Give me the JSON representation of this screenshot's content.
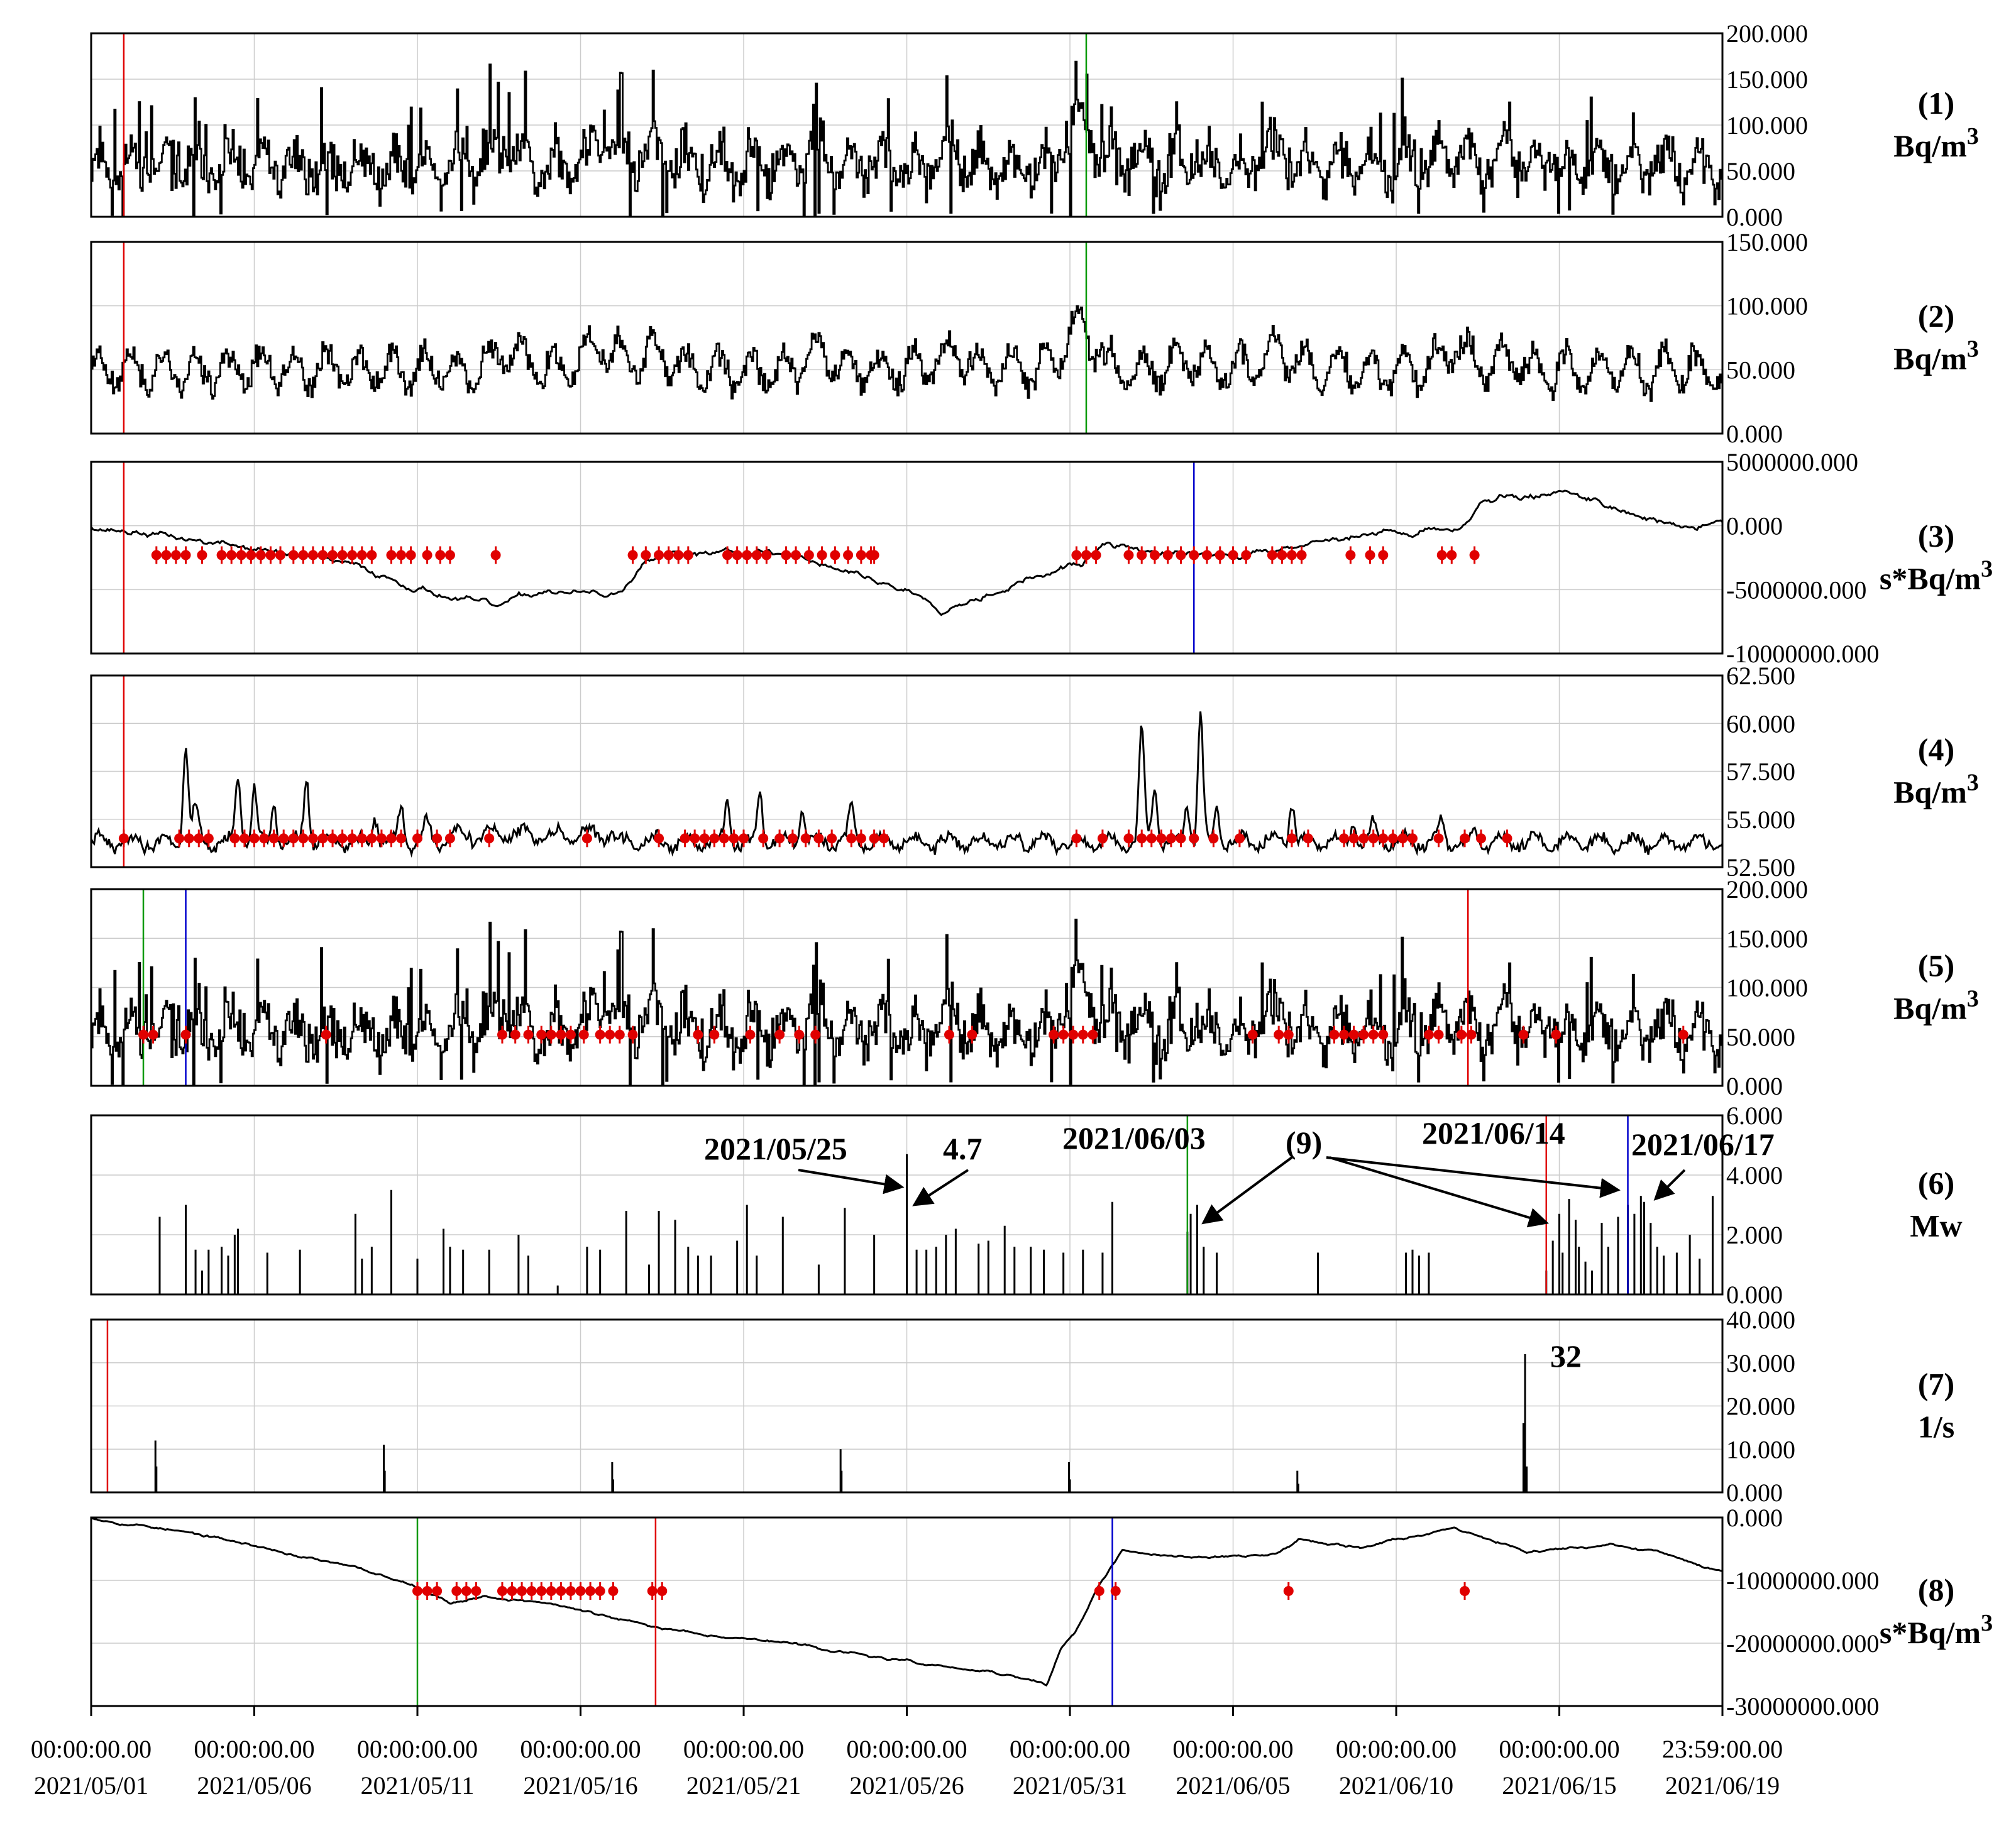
{
  "chart_data": {
    "type": "line",
    "x_axis": {
      "range": [
        "2021/05/01 00:00:00.00",
        "2021/06/19 23:59:00.00"
      ],
      "ticks": [
        {
          "time": "00:00:00.00",
          "date": "2021/05/01",
          "day": 0
        },
        {
          "time": "00:00:00.00",
          "date": "2021/05/06",
          "day": 5
        },
        {
          "time": "00:00:00.00",
          "date": "2021/05/11",
          "day": 10
        },
        {
          "time": "00:00:00.00",
          "date": "2021/05/16",
          "day": 15
        },
        {
          "time": "00:00:00.00",
          "date": "2021/05/21",
          "day": 20
        },
        {
          "time": "00:00:00.00",
          "date": "2021/05/26",
          "day": 25
        },
        {
          "time": "00:00:00.00",
          "date": "2021/05/31",
          "day": 30
        },
        {
          "time": "00:00:00.00",
          "date": "2021/06/05",
          "day": 35
        },
        {
          "time": "00:00:00.00",
          "date": "2021/06/10",
          "day": 40
        },
        {
          "time": "00:00:00.00",
          "date": "2021/06/15",
          "day": 45
        },
        {
          "time": "23:59:00.00",
          "date": "2021/06/19",
          "day": 49.999
        }
      ],
      "grid": true
    },
    "panels": [
      {
        "id": "(1)",
        "unit": "Bq/m",
        "unit_sup": "3",
        "ylim": [
          0,
          200
        ],
        "yticks": [
          "200.000",
          "150.000",
          "100.000",
          "50.000",
          "0.000"
        ],
        "style": "step",
        "kind": "radon",
        "vlines": [
          {
            "day": 1.0,
            "color": "#e00000"
          },
          {
            "day": 30.5,
            "color": "#009900"
          }
        ],
        "markers": []
      },
      {
        "id": "(2)",
        "unit": "Bq/m",
        "unit_sup": "3",
        "ylim": [
          0,
          150
        ],
        "yticks": [
          "150.000",
          "100.000",
          "50.000",
          "0.000"
        ],
        "style": "step",
        "kind": "radon_smooth",
        "vlines": [
          {
            "day": 1.0,
            "color": "#e00000"
          },
          {
            "day": 30.5,
            "color": "#009900"
          }
        ],
        "markers": []
      },
      {
        "id": "(3)",
        "unit": "s*Bq/m",
        "unit_sup": "3",
        "ylim": [
          -10000000,
          5000000
        ],
        "yticks": [
          "5000000.000",
          "0.000",
          "-5000000.000",
          "-10000000.000"
        ],
        "style": "line",
        "kind": "cumulative3",
        "vlines": [
          {
            "day": 1.0,
            "color": "#e00000"
          },
          {
            "day": 33.8,
            "color": "#0000cc"
          }
        ],
        "marker_value": -2300000,
        "markers": [
          2.0,
          2.3,
          2.6,
          2.9,
          3.4,
          4.0,
          4.3,
          4.6,
          4.9,
          5.2,
          5.5,
          5.8,
          6.2,
          6.5,
          6.8,
          7.1,
          7.4,
          7.7,
          8.0,
          8.3,
          8.6,
          9.2,
          9.5,
          9.8,
          10.3,
          10.7,
          11.0,
          12.4,
          16.6,
          17.0,
          17.4,
          17.7,
          18.0,
          18.3,
          19.5,
          19.8,
          20.1,
          20.4,
          20.7,
          21.3,
          21.6,
          22.0,
          22.4,
          22.8,
          23.2,
          23.6,
          23.9,
          24.0,
          30.2,
          30.5,
          30.8,
          31.8,
          32.2,
          32.6,
          33.0,
          33.4,
          33.8,
          34.2,
          34.6,
          35.0,
          35.4,
          36.2,
          36.5,
          36.8,
          37.1,
          38.6,
          39.2,
          39.6,
          41.4,
          41.7,
          42.4
        ]
      },
      {
        "id": "(4)",
        "unit": "Bq/m",
        "unit_sup": "3",
        "ylim": [
          52.5,
          62.5
        ],
        "yticks": [
          "62.500",
          "60.000",
          "57.500",
          "55.000",
          "52.500"
        ],
        "style": "line",
        "kind": "baseline4",
        "vlines": [
          {
            "day": 1.0,
            "color": "#e00000"
          }
        ],
        "marker_value": 54.0,
        "markers": [
          1.0,
          2.7,
          3.0,
          3.3,
          3.6,
          4.4,
          4.7,
          5.0,
          5.3,
          5.6,
          5.9,
          6.2,
          6.5,
          6.8,
          7.1,
          7.4,
          7.7,
          8.0,
          8.3,
          8.6,
          8.9,
          9.2,
          9.5,
          10.0,
          10.6,
          11.0,
          12.2,
          15.2,
          17.4,
          18.2,
          18.5,
          18.8,
          19.1,
          19.4,
          19.7,
          20.0,
          20.6,
          21.1,
          21.5,
          21.9,
          22.3,
          22.7,
          23.3,
          23.6,
          24.0,
          24.3,
          30.2,
          31.0,
          31.8,
          32.2,
          32.5,
          32.8,
          33.1,
          33.4,
          33.8,
          34.4,
          35.2,
          36.8,
          37.3,
          38.4,
          38.7,
          39.0,
          39.3,
          39.6,
          39.9,
          40.2,
          40.5,
          41.3,
          42.1,
          42.6,
          43.4
        ]
      },
      {
        "id": "(5)",
        "unit": "Bq/m",
        "unit_sup": "3",
        "ylim": [
          0,
          200
        ],
        "yticks": [
          "200.000",
          "150.000",
          "100.000",
          "50.000",
          "0.000"
        ],
        "style": "step",
        "kind": "radon5",
        "vlines": [
          {
            "day": 1.6,
            "color": "#009900"
          },
          {
            "day": 2.9,
            "color": "#0000cc"
          },
          {
            "day": 42.2,
            "color": "#e00000"
          }
        ],
        "marker_value": 52,
        "markers": [
          1.6,
          1.9,
          2.9,
          7.2,
          12.6,
          13.0,
          13.4,
          13.8,
          14.1,
          14.4,
          14.7,
          15.1,
          15.6,
          15.9,
          16.2,
          16.6,
          18.6,
          19.1,
          20.2,
          21.1,
          21.7,
          22.2,
          26.3,
          27.0,
          29.5,
          29.8,
          30.1,
          30.4,
          30.7,
          35.6,
          36.4,
          36.7,
          38.1,
          38.4,
          38.7,
          39.0,
          39.3,
          39.6,
          41.0,
          41.3,
          42.0,
          42.3,
          43.9,
          44.9,
          48.8
        ]
      },
      {
        "id": "(6)",
        "unit": "Mw",
        "unit_sup": "",
        "ylim": [
          0,
          6
        ],
        "yticks": [
          "6.000",
          "4.000",
          "2.000",
          "0.000"
        ],
        "style": "spikes",
        "kind": "magnitude",
        "vlines": [
          {
            "day": 33.6,
            "color": "#009900"
          },
          {
            "day": 44.6,
            "color": "#e00000"
          },
          {
            "day": 47.1,
            "color": "#0000cc"
          }
        ],
        "spikes": [
          [
            2.1,
            2.6
          ],
          [
            2.9,
            3.0
          ],
          [
            3.2,
            1.5
          ],
          [
            3.4,
            0.8
          ],
          [
            3.6,
            1.5
          ],
          [
            4.0,
            1.6
          ],
          [
            4.2,
            1.3
          ],
          [
            4.4,
            2.0
          ],
          [
            4.5,
            2.2
          ],
          [
            5.4,
            1.4
          ],
          [
            6.4,
            1.5
          ],
          [
            8.1,
            2.7
          ],
          [
            8.3,
            1.2
          ],
          [
            8.6,
            1.6
          ],
          [
            9.2,
            3.5
          ],
          [
            10.0,
            1.2
          ],
          [
            10.8,
            2.2
          ],
          [
            11.0,
            1.6
          ],
          [
            11.4,
            1.5
          ],
          [
            12.2,
            1.5
          ],
          [
            13.1,
            2.0
          ],
          [
            13.4,
            1.3
          ],
          [
            14.3,
            0.3
          ],
          [
            15.2,
            1.6
          ],
          [
            15.6,
            1.5
          ],
          [
            16.4,
            2.8
          ],
          [
            17.1,
            1.0
          ],
          [
            17.4,
            2.8
          ],
          [
            17.9,
            2.5
          ],
          [
            18.3,
            1.6
          ],
          [
            18.6,
            1.3
          ],
          [
            19.0,
            1.3
          ],
          [
            19.8,
            1.8
          ],
          [
            20.1,
            3.0
          ],
          [
            20.4,
            1.3
          ],
          [
            21.2,
            2.6
          ],
          [
            22.3,
            1.0
          ],
          [
            23.1,
            2.9
          ],
          [
            24.0,
            2.0
          ],
          [
            25.0,
            4.7
          ],
          [
            25.3,
            1.5
          ],
          [
            25.6,
            1.5
          ],
          [
            25.9,
            1.6
          ],
          [
            26.2,
            2.0
          ],
          [
            26.5,
            2.2
          ],
          [
            27.2,
            1.7
          ],
          [
            27.5,
            1.8
          ],
          [
            28.0,
            2.3
          ],
          [
            28.3,
            1.6
          ],
          [
            28.8,
            1.6
          ],
          [
            29.2,
            1.5
          ],
          [
            29.8,
            1.4
          ],
          [
            30.4,
            1.5
          ],
          [
            31.0,
            1.4
          ],
          [
            31.3,
            3.1
          ],
          [
            33.6,
            2.1
          ],
          [
            33.7,
            2.7
          ],
          [
            33.9,
            3.0
          ],
          [
            34.1,
            1.6
          ],
          [
            34.5,
            1.4
          ],
          [
            37.6,
            1.4
          ],
          [
            40.3,
            1.4
          ],
          [
            40.5,
            1.5
          ],
          [
            40.7,
            1.3
          ],
          [
            41.0,
            1.4
          ],
          [
            44.6,
            0.8
          ],
          [
            44.8,
            1.8
          ],
          [
            45.0,
            2.7
          ],
          [
            45.1,
            1.4
          ],
          [
            45.3,
            3.2
          ],
          [
            45.5,
            2.5
          ],
          [
            45.6,
            1.6
          ],
          [
            45.8,
            1.1
          ],
          [
            46.0,
            0.8
          ],
          [
            46.3,
            2.4
          ],
          [
            46.5,
            1.6
          ],
          [
            46.8,
            2.6
          ],
          [
            47.1,
            3.0
          ],
          [
            47.3,
            2.7
          ],
          [
            47.5,
            3.3
          ],
          [
            47.6,
            3.1
          ],
          [
            47.8,
            2.4
          ],
          [
            48.0,
            1.6
          ],
          [
            48.2,
            1.3
          ],
          [
            48.6,
            1.4
          ],
          [
            49.0,
            2.0
          ],
          [
            49.3,
            1.2
          ],
          [
            49.7,
            3.3
          ]
        ],
        "annotations": [
          {
            "text": "2021/05/25",
            "role": "date"
          },
          {
            "text": "4.7",
            "role": "magnitude"
          },
          {
            "text": "2021/06/03",
            "role": "date"
          },
          {
            "text": "(9)",
            "role": "marker"
          },
          {
            "text": "2021/06/14",
            "role": "date"
          },
          {
            "text": "2021/06/17",
            "role": "date"
          }
        ]
      },
      {
        "id": "(7)",
        "unit": "1/s",
        "unit_sup": "",
        "ylim": [
          0,
          40
        ],
        "yticks": [
          "40.000",
          "30.000",
          "20.000",
          "10.000",
          "0.000"
        ],
        "style": "spikes",
        "kind": "rate",
        "vlines": [
          {
            "day": 0.5,
            "color": "#e00000"
          }
        ],
        "spikes": [
          [
            1.97,
            12.0
          ],
          [
            2.0,
            6.0
          ],
          [
            8.97,
            11.0
          ],
          [
            9.0,
            5.0
          ],
          [
            15.97,
            7.0
          ],
          [
            16.0,
            3.0
          ],
          [
            22.97,
            10.0
          ],
          [
            23.0,
            5.0
          ],
          [
            29.97,
            7.0
          ],
          [
            30.0,
            3.0
          ],
          [
            36.97,
            5.0
          ],
          [
            37.0,
            2.0
          ],
          [
            43.9,
            16.0
          ],
          [
            43.95,
            32.0
          ],
          [
            44.0,
            6.0
          ]
        ],
        "annotations": [
          {
            "text": "32",
            "role": "peak"
          }
        ]
      },
      {
        "id": "(8)",
        "unit": "s*Bq/m",
        "unit_sup": "3",
        "ylim": [
          -30000000,
          0
        ],
        "yticks": [
          "0.000",
          "-10000000.000",
          "-20000000.000",
          "-30000000.000"
        ],
        "style": "line",
        "kind": "cumulative8",
        "vlines": [
          {
            "day": 10.0,
            "color": "#009900"
          },
          {
            "day": 17.3,
            "color": "#e00000"
          },
          {
            "day": 31.3,
            "color": "#0000cc"
          }
        ],
        "marker_value": -11700000,
        "markers": [
          10.0,
          10.3,
          10.6,
          11.2,
          11.5,
          11.8,
          12.6,
          12.9,
          13.2,
          13.5,
          13.8,
          14.1,
          14.4,
          14.7,
          15.0,
          15.3,
          15.6,
          16.0,
          17.2,
          17.5,
          30.9,
          31.4,
          36.7,
          42.1
        ]
      }
    ]
  }
}
